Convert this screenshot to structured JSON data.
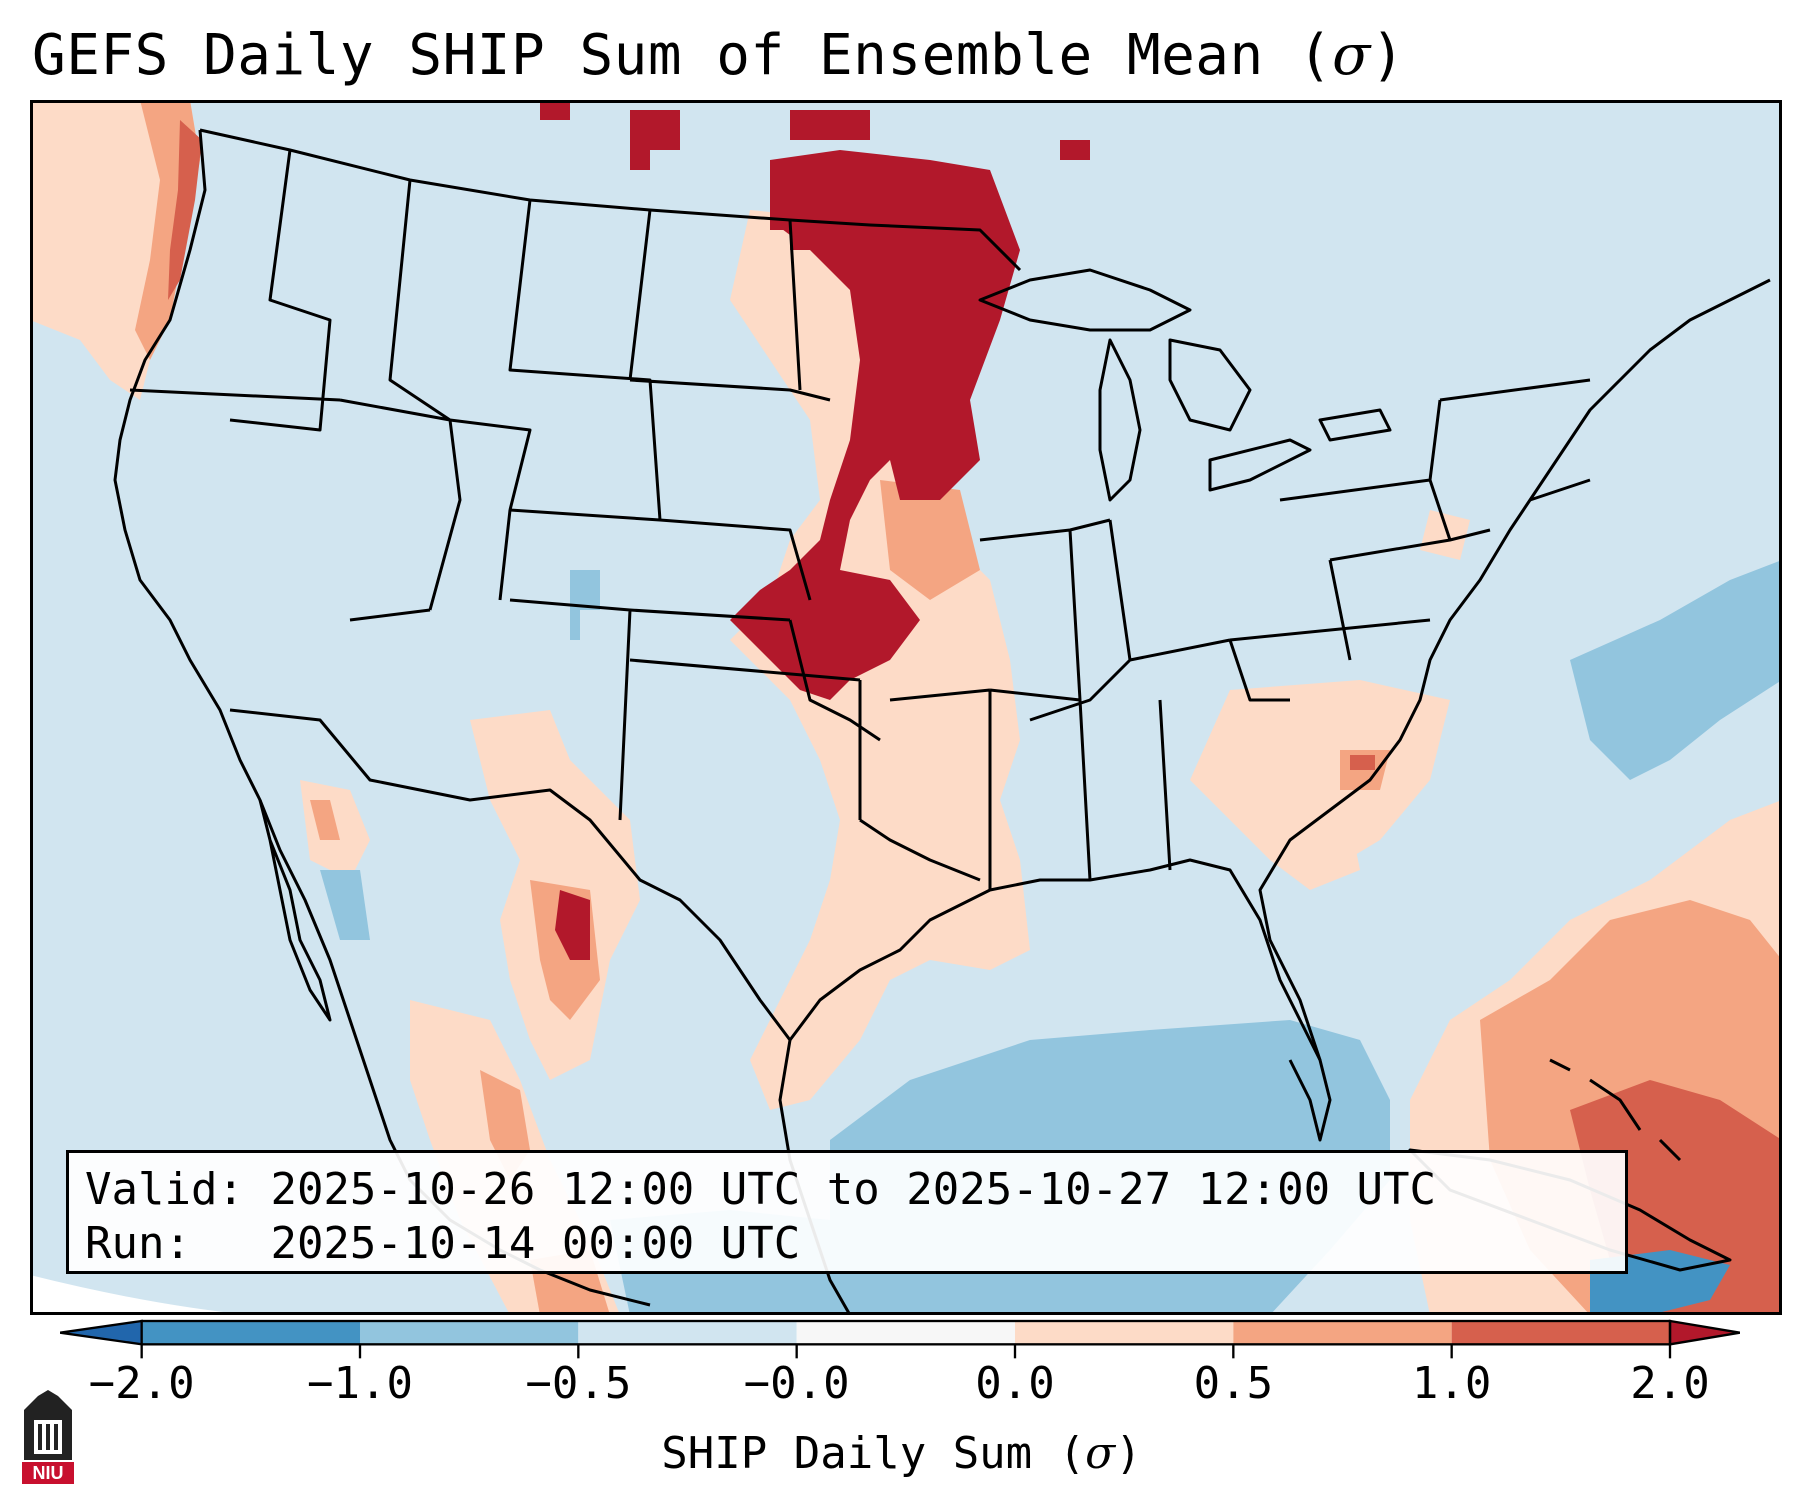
{
  "title": {
    "text": "GEFS Daily SHIP Sum of Ensemble Mean (",
    "symbol": "σ",
    "close": ")"
  },
  "info": {
    "valid_label": "Valid:",
    "valid_value": "2025-10-26 12:00 UTC to 2025-10-27 12:00 UTC",
    "run_label": "Run:",
    "run_value": "2025-10-14 00:00 UTC"
  },
  "colorbar": {
    "ticks": [
      "−2.0",
      "−1.0",
      "−0.5",
      "−0.0",
      "0.0",
      "0.5",
      "1.0",
      "2.0"
    ],
    "bin_colors": [
      "#4393c3",
      "#92c5de",
      "#d1e5f0",
      "#f7f7f7",
      "#fddbc7",
      "#f4a582",
      "#d6604d"
    ],
    "under_color": "#2166ac",
    "over_color": "#b2182b",
    "label_text": "SHIP Daily Sum (",
    "label_symbol": "σ",
    "label_close": ")"
  },
  "colors": {
    "background_field": "#d1e5f0",
    "light_positive": "#fddbc7",
    "medium_positive": "#f4a582",
    "strong_positive": "#d6604d",
    "very_strong_positive": "#b2182b",
    "light_negative": "#92c5de",
    "medium_negative": "#4393c3",
    "near_zero": "#f7f7f7"
  },
  "logo": {
    "text": "NIU"
  }
}
